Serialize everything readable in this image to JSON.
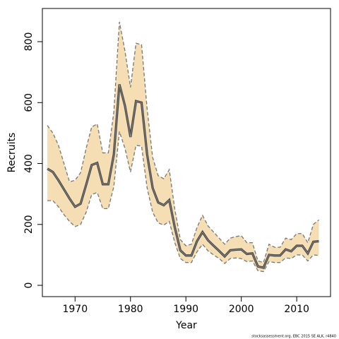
{
  "chart_data": {
    "type": "line",
    "xlabel": "Year",
    "ylabel": "Recruits",
    "footnote": "stocksassessment.org, EBC 2015 SE ALK, r4840",
    "x": [
      1965,
      1966,
      1967,
      1968,
      1969,
      1970,
      1971,
      1972,
      1973,
      1974,
      1975,
      1976,
      1977,
      1978,
      1979,
      1980,
      1981,
      1982,
      1983,
      1984,
      1985,
      1986,
      1987,
      1988,
      1989,
      1990,
      1991,
      1992,
      1993,
      1994,
      1995,
      1996,
      1997,
      1998,
      1999,
      2000,
      2001,
      2002,
      2003,
      2004,
      2005,
      2006,
      2007,
      2008,
      2009,
      2010,
      2011,
      2012,
      2013,
      2014
    ],
    "values": [
      383,
      372,
      345,
      315,
      285,
      258,
      268,
      330,
      395,
      402,
      332,
      332,
      430,
      660,
      590,
      487,
      605,
      600,
      430,
      320,
      272,
      263,
      280,
      190,
      115,
      98,
      98,
      145,
      175,
      148,
      130,
      113,
      95,
      115,
      117,
      118,
      103,
      105,
      62,
      58,
      100,
      98,
      98,
      118,
      112,
      130,
      130,
      105,
      143,
      145
    ],
    "upper": [
      525,
      500,
      460,
      400,
      340,
      345,
      370,
      450,
      520,
      530,
      435,
      435,
      570,
      865,
      770,
      650,
      795,
      790,
      580,
      420,
      360,
      350,
      380,
      250,
      150,
      130,
      135,
      190,
      230,
      195,
      175,
      155,
      135,
      155,
      160,
      163,
      140,
      140,
      80,
      75,
      135,
      125,
      125,
      155,
      150,
      170,
      170,
      140,
      200,
      215
    ],
    "lower": [
      278,
      278,
      258,
      232,
      210,
      193,
      200,
      240,
      298,
      305,
      252,
      252,
      325,
      505,
      450,
      372,
      460,
      457,
      320,
      240,
      205,
      198,
      210,
      140,
      88,
      75,
      75,
      110,
      135,
      113,
      100,
      88,
      72,
      88,
      90,
      88,
      78,
      80,
      48,
      45,
      78,
      75,
      75,
      90,
      88,
      100,
      100,
      80,
      100,
      98
    ],
    "line_color": "#444444",
    "band_color": "#f5deb3",
    "band_edge_color": "#777777",
    "xlim": [
      1964.1,
      2016.1
    ],
    "xticks": [
      1970,
      1980,
      1990,
      2000,
      2010
    ],
    "ylim": [
      -37,
      909
    ],
    "yticks": [
      0,
      200,
      400,
      600,
      800
    ]
  }
}
